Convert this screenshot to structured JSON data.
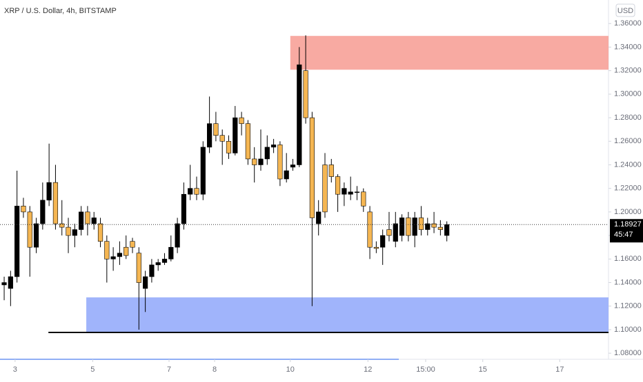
{
  "chart_data": {
    "type": "candlestick",
    "title": "XRP / U.S. Dollar, 4h, BITSTAMP",
    "currency": "USD",
    "countdown": "45:47",
    "bull_color": "#000000",
    "bear_color": "#f5b652",
    "x": [
      0,
      1,
      2,
      3,
      4,
      5,
      6,
      7,
      8,
      9,
      10,
      11,
      12,
      13,
      14,
      15,
      16,
      17,
      18,
      19,
      20,
      21,
      22,
      23,
      24,
      25,
      26,
      27,
      28,
      29,
      30,
      31,
      32,
      33,
      34,
      35,
      36,
      37,
      38,
      39,
      40,
      41,
      42,
      43,
      44,
      45,
      46,
      47,
      48,
      49,
      50,
      51,
      52,
      53,
      54,
      55,
      56,
      57,
      58,
      59,
      60,
      61,
      62,
      63,
      64,
      65,
      66,
      67,
      68,
      69
    ],
    "open": [
      1.138,
      1.135,
      1.145,
      1.205,
      1.2,
      1.17,
      1.19,
      1.21,
      1.225,
      1.19,
      1.187,
      1.18,
      1.185,
      1.2,
      1.19,
      1.19,
      1.175,
      1.16,
      1.162,
      1.17,
      1.175,
      1.165,
      1.135,
      1.145,
      1.155,
      1.157,
      1.16,
      1.17,
      1.19,
      1.215,
      1.22,
      1.215,
      1.255,
      1.275,
      1.265,
      1.26,
      1.25,
      1.28,
      1.275,
      1.245,
      1.24,
      1.245,
      1.255,
      1.257,
      1.228,
      1.238,
      1.24,
      1.32,
      1.28,
      1.19,
      1.24,
      1.24,
      1.23,
      1.215,
      1.215,
      1.217,
      1.217,
      1.2,
      1.17,
      1.17,
      1.185,
      1.175,
      1.18,
      1.195,
      1.18,
      1.195,
      1.185,
      1.19,
      1.187,
      1.18
    ],
    "high": [
      1.145,
      1.15,
      1.235,
      1.212,
      1.205,
      1.195,
      1.225,
      1.258,
      1.24,
      1.21,
      1.195,
      1.19,
      1.205,
      1.205,
      1.2,
      1.195,
      1.18,
      1.17,
      1.175,
      1.18,
      1.178,
      1.17,
      1.15,
      1.16,
      1.16,
      1.165,
      1.18,
      1.195,
      1.225,
      1.24,
      1.23,
      1.26,
      1.298,
      1.285,
      1.27,
      1.265,
      1.29,
      1.285,
      1.278,
      1.255,
      1.27,
      1.265,
      1.262,
      1.26,
      1.25,
      1.245,
      1.34,
      1.35,
      1.285,
      1.21,
      1.25,
      1.245,
      1.232,
      1.225,
      1.23,
      1.222,
      1.22,
      1.205,
      1.175,
      1.185,
      1.2,
      1.2,
      1.198,
      1.2,
      1.2,
      1.205,
      1.195,
      1.2,
      1.193,
      1.192
    ],
    "low": [
      1.125,
      1.12,
      1.14,
      1.195,
      1.145,
      1.165,
      1.185,
      1.205,
      1.185,
      1.18,
      1.165,
      1.17,
      1.18,
      1.18,
      1.185,
      1.17,
      1.14,
      1.15,
      1.155,
      1.16,
      1.165,
      1.1,
      1.115,
      1.14,
      1.15,
      1.155,
      1.158,
      1.165,
      1.185,
      1.21,
      1.21,
      1.21,
      1.25,
      1.26,
      1.24,
      1.245,
      1.248,
      1.265,
      1.24,
      1.225,
      1.235,
      1.24,
      1.25,
      1.222,
      1.225,
      1.235,
      1.238,
      1.275,
      1.12,
      1.18,
      1.195,
      1.225,
      1.2,
      1.205,
      1.21,
      1.21,
      1.2,
      1.16,
      1.165,
      1.155,
      1.175,
      1.17,
      1.175,
      1.175,
      1.17,
      1.18,
      1.18,
      1.182,
      1.18,
      1.175
    ],
    "close": [
      1.14,
      1.145,
      1.205,
      1.2,
      1.17,
      1.19,
      1.21,
      1.225,
      1.19,
      1.187,
      1.18,
      1.185,
      1.2,
      1.19,
      1.195,
      1.175,
      1.16,
      1.162,
      1.165,
      1.163,
      1.17,
      1.14,
      1.145,
      1.155,
      1.157,
      1.16,
      1.17,
      1.19,
      1.215,
      1.22,
      1.215,
      1.255,
      1.275,
      1.265,
      1.26,
      1.25,
      1.28,
      1.275,
      1.245,
      1.24,
      1.245,
      1.255,
      1.257,
      1.228,
      1.235,
      1.24,
      1.325,
      1.28,
      1.195,
      1.2,
      1.2,
      1.23,
      1.215,
      1.22,
      1.217,
      1.217,
      1.205,
      1.17,
      1.169,
      1.18,
      1.18,
      1.19,
      1.195,
      1.18,
      1.195,
      1.185,
      1.19,
      1.187,
      1.185,
      1.18927
    ],
    "xlim": [
      -0.65,
      94.2
    ],
    "xticks": [
      {
        "value": 1.7,
        "label": "3"
      },
      {
        "value": 13.8,
        "label": "5"
      },
      {
        "value": 25.7,
        "label": "7"
      },
      {
        "value": 32.8,
        "label": "8"
      },
      {
        "value": 44.6,
        "label": "10"
      },
      {
        "value": 56.7,
        "label": "12"
      },
      {
        "value": 65.7,
        "label": "15:00"
      },
      {
        "value": 74.6,
        "label": "15"
      },
      {
        "value": 86.6,
        "label": "17"
      }
    ],
    "ylim": [
      1.076,
      1.38
    ],
    "yticks": [
      {
        "value": 1.08,
        "label": "1.08000"
      },
      {
        "value": 1.1,
        "label": "1.10000"
      },
      {
        "value": 1.12,
        "label": "1.12000"
      },
      {
        "value": 1.14,
        "label": "1.14000"
      },
      {
        "value": 1.16,
        "label": "1.16000"
      },
      {
        "value": 1.18,
        "label": "1.18000"
      },
      {
        "value": 1.2,
        "label": "1.20000"
      },
      {
        "value": 1.22,
        "label": "1.22000"
      },
      {
        "value": 1.24,
        "label": "1.24000"
      },
      {
        "value": 1.26,
        "label": "1.26000"
      },
      {
        "value": 1.28,
        "label": "1.28000"
      },
      {
        "value": 1.3,
        "label": "1.30000"
      },
      {
        "value": 1.32,
        "label": "1.32000"
      },
      {
        "value": 1.34,
        "label": "1.34000"
      },
      {
        "value": 1.36,
        "label": "1.36000"
      }
    ],
    "zones": [
      {
        "ylim": [
          1.3208,
          1.3495
        ],
        "xlim": [
          44.6,
          94.2
        ],
        "color": "#f8aaa2"
      },
      {
        "ylim": [
          1.0982,
          1.1274
        ],
        "xlim": [
          12.8,
          94.2
        ],
        "color": "#a0b4fb"
      }
    ],
    "hline": {
      "y": 1.0976,
      "xlim": [
        6.9,
        94.2
      ],
      "color": "#000000"
    }
  }
}
